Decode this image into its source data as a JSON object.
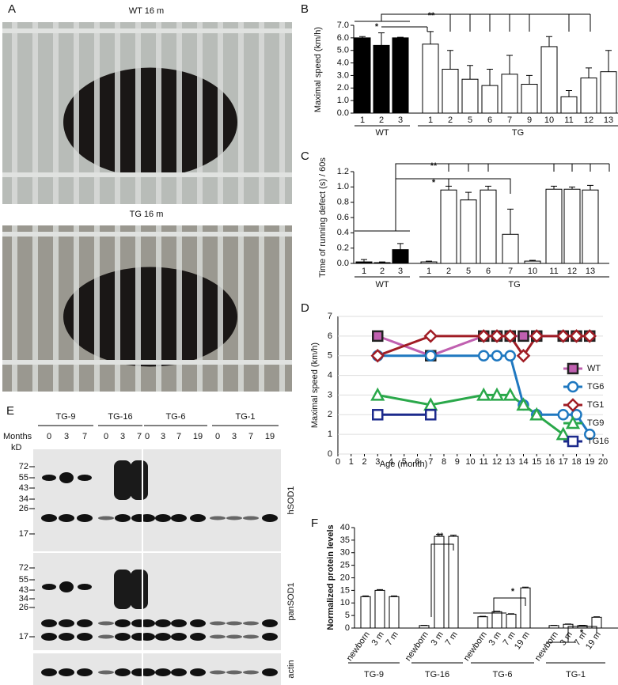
{
  "panel_a": {
    "label": "A",
    "photos": [
      {
        "caption": "WT 16 m"
      },
      {
        "caption": "TG 16 m"
      }
    ]
  },
  "panel_e": {
    "label": "E",
    "months_label": "Months",
    "kd_label": "kD",
    "groups": [
      {
        "name": "TG-9",
        "months": [
          "0",
          "3",
          "7"
        ]
      },
      {
        "name": "TG-16",
        "months": [
          "0",
          "3",
          "7"
        ]
      },
      {
        "name": "TG-6",
        "months": [
          "0",
          "3",
          "7",
          "19"
        ]
      },
      {
        "name": "TG-1",
        "months": [
          "0",
          "3",
          "7",
          "19"
        ]
      }
    ],
    "blots": [
      {
        "name": "hSOD1",
        "markers": [
          "72",
          "55",
          "43",
          "34",
          "26",
          "17"
        ]
      },
      {
        "name": "panSOD1",
        "markers": [
          "72",
          "55",
          "43",
          "34",
          "26",
          "17"
        ]
      },
      {
        "name": "actin",
        "markers": []
      }
    ]
  },
  "chart_data": [
    {
      "panel_label": "B",
      "type": "bar",
      "y_label": "Maximal speed (km/h)",
      "ylim": [
        0,
        7
      ],
      "yticks": [
        {
          "value": 0,
          "label": "0.0"
        },
        {
          "value": 1,
          "label": "1.0"
        },
        {
          "value": 2,
          "label": "2.0"
        },
        {
          "value": 3,
          "label": "3.0"
        },
        {
          "value": 4,
          "label": "4.0"
        },
        {
          "value": 5,
          "label": "5.0"
        },
        {
          "value": 6,
          "label": "6.0"
        },
        {
          "value": 7,
          "label": "7.0"
        }
      ],
      "groups": [
        {
          "name": "WT",
          "color": "#000000",
          "categories": [
            "1",
            "2",
            "3"
          ],
          "values": [
            6.0,
            5.4,
            6.0
          ],
          "errors": [
            0.1,
            1.0,
            0.05
          ]
        },
        {
          "name": "TG",
          "color": "#ffffff",
          "categories": [
            "1",
            "2",
            "5",
            "6",
            "7",
            "9",
            "10",
            "11",
            "12",
            "13"
          ],
          "values": [
            5.5,
            3.5,
            2.7,
            2.2,
            3.1,
            2.3,
            5.3,
            1.3,
            2.8,
            3.3
          ],
          "errors": [
            1.0,
            1.5,
            1.1,
            1.3,
            1.5,
            0.7,
            0.8,
            0.5,
            0.8,
            1.7
          ]
        }
      ],
      "significance": [
        "**",
        "*"
      ]
    },
    {
      "panel_label": "C",
      "type": "bar",
      "y_label": "Time of running defect (s) / 60s",
      "ylim": [
        0,
        1.2
      ],
      "yticks": [
        {
          "value": 0,
          "label": "0.0"
        },
        {
          "value": 0.2,
          "label": "0.2"
        },
        {
          "value": 0.4,
          "label": "0.4"
        },
        {
          "value": 0.6,
          "label": "0.6"
        },
        {
          "value": 0.8,
          "label": "0.8"
        },
        {
          "value": 1,
          "label": "1.0"
        },
        {
          "value": 1.2,
          "label": "1.2"
        }
      ],
      "groups": [
        {
          "name": "WT",
          "color": "#000000",
          "categories": [
            "1",
            "2",
            "3"
          ],
          "values": [
            0.02,
            0.01,
            0.18
          ],
          "errors": [
            0.03,
            0.01,
            0.08
          ]
        },
        {
          "name": "TG",
          "color": "#ffffff",
          "categories": [
            "1",
            "2",
            "5",
            "6",
            "7",
            "10",
            "11",
            "12",
            "13"
          ],
          "values": [
            0.02,
            0.96,
            0.83,
            0.96,
            0.38,
            0.03,
            0.97,
            0.97,
            0.96
          ],
          "errors": [
            0.01,
            0.05,
            0.1,
            0.05,
            0.33,
            0.01,
            0.04,
            0.03,
            0.06
          ]
        }
      ],
      "significance": [
        "**",
        "*"
      ]
    },
    {
      "panel_label": "D",
      "type": "line",
      "y_label": "Maximal speed (km/h)",
      "x_label": "Age (month)",
      "x": [
        3,
        7,
        11,
        12,
        13,
        14,
        15,
        17,
        18,
        19
      ],
      "xlim": [
        0,
        20
      ],
      "xticks": [
        0,
        1,
        2,
        3,
        4,
        5,
        6,
        7,
        8,
        9,
        10,
        11,
        12,
        13,
        14,
        15,
        16,
        17,
        18,
        19,
        20
      ],
      "ylim": [
        0,
        7
      ],
      "yticks": [
        0,
        1,
        2,
        3,
        4,
        5,
        6,
        7
      ],
      "series": [
        {
          "name": "WT",
          "color": "#c060b0",
          "marker": "square",
          "filled": true,
          "values": [
            6,
            5,
            6,
            6,
            6,
            6,
            6,
            6,
            6,
            6
          ]
        },
        {
          "name": "TG6",
          "color": "#1f78c0",
          "marker": "circle",
          "filled": false,
          "values": [
            5,
            5,
            5,
            5,
            5,
            2.5,
            2,
            2,
            2,
            1
          ]
        },
        {
          "name": "TG1",
          "color": "#a01c24",
          "marker": "diamond",
          "filled": false,
          "values": [
            5,
            6,
            6,
            6,
            6,
            5,
            6,
            6,
            6,
            6
          ]
        },
        {
          "name": "TG9",
          "color": "#2aa84a",
          "marker": "triangle",
          "filled": false,
          "values": [
            3,
            2.5,
            3,
            3,
            3,
            2.5,
            2,
            1,
            null,
            null
          ]
        },
        {
          "name": "TG16",
          "color": "#1c2a8c",
          "marker": "square",
          "filled": false,
          "values": [
            2,
            2,
            null,
            null,
            null,
            null,
            null,
            null,
            null,
            null
          ]
        }
      ]
    },
    {
      "panel_label": "F",
      "type": "bar",
      "y_label": "Normalized protein levels",
      "ylim": [
        0,
        40
      ],
      "yticks": [
        0,
        5,
        10,
        15,
        20,
        25,
        30,
        35,
        40
      ],
      "groups": [
        {
          "name": "TG-9",
          "color": "#ffffff",
          "categories": [
            "newborn",
            "3 m",
            "7 m"
          ],
          "values": [
            12.5,
            15,
            12.5
          ],
          "errors": [
            0.3,
            0.3,
            0.3
          ]
        },
        {
          "name": "TG-16",
          "color": "#ffffff",
          "categories": [
            "newborn",
            "3 m",
            "7 m"
          ],
          "values": [
            1,
            36.5,
            36.5
          ],
          "errors": [
            0.1,
            0.8,
            0.5
          ]
        },
        {
          "name": "TG-6",
          "color": "#ffffff",
          "categories": [
            "newborn",
            "3 m",
            "7 m",
            "19 m"
          ],
          "values": [
            4.5,
            6.5,
            5.5,
            16
          ],
          "errors": [
            0.2,
            0.2,
            0.2,
            0.3
          ]
        },
        {
          "name": "TG-1",
          "color": "#ffffff",
          "categories": [
            "newborn",
            "3 m",
            "7 m",
            "19 m"
          ],
          "values": [
            1,
            1.5,
            1,
            4.3
          ],
          "errors": [
            0.1,
            0.1,
            0.1,
            0.2
          ]
        }
      ],
      "significance": [
        "**",
        "*",
        "*"
      ]
    }
  ]
}
